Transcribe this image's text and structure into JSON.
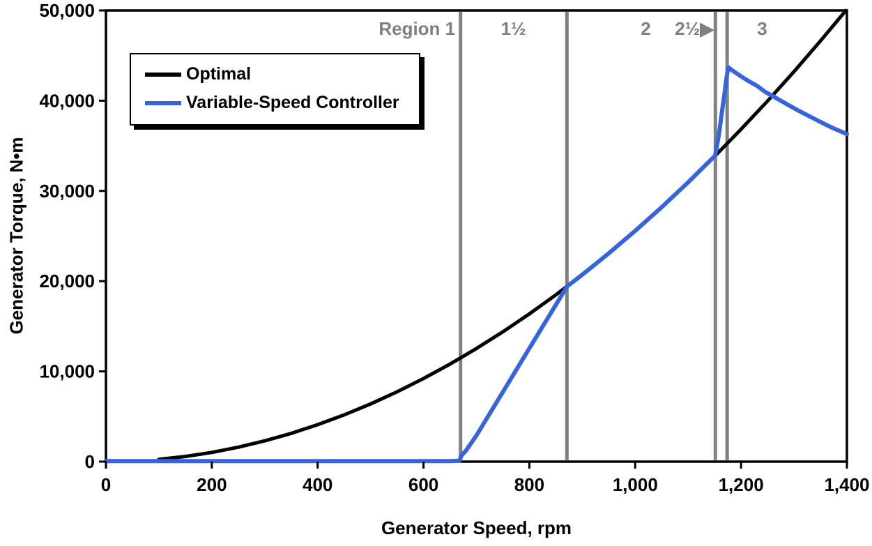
{
  "legend": {
    "items": [
      {
        "label": "Optimal",
        "color": "#000000"
      },
      {
        "label": "Variable-Speed Controller",
        "color": "#3564de"
      }
    ]
  },
  "chart_data": {
    "type": "line",
    "title": "",
    "xlabel": "Generator Speed, rpm",
    "ylabel": "Generator Torque, N•m",
    "xlim": [
      0,
      1400
    ],
    "ylim": [
      0,
      50000
    ],
    "x_ticks": [
      0,
      200,
      400,
      600,
      800,
      1000,
      1200,
      1400
    ],
    "x_tick_labels": [
      "0",
      "200",
      "400",
      "600",
      "800",
      "1,000",
      "1,200",
      "1,400"
    ],
    "y_ticks": [
      0,
      10000,
      20000,
      30000,
      40000,
      50000
    ],
    "y_tick_labels": [
      "0",
      "10,000",
      "20,000",
      "30,000",
      "40,000",
      "50,000"
    ],
    "grid": false,
    "legend_position": "top-left",
    "region_line_color": "#808080",
    "region_boundaries_rpm": [
      670,
      871,
      1151.5,
      1173.7
    ],
    "region_labels": [
      {
        "text": "Region 1",
        "x": 660,
        "align": "end"
      },
      {
        "text": "1½",
        "x": 770,
        "align": "middle"
      },
      {
        "text": "2",
        "x": 1020,
        "align": "middle"
      },
      {
        "text": "2½▶",
        "x": 1149,
        "align": "end"
      },
      {
        "text": "3",
        "x": 1240,
        "align": "middle"
      }
    ],
    "series": [
      {
        "name": "Optimal",
        "color": "#000000",
        "width": 5,
        "points": [
          [
            100,
            256
          ],
          [
            150,
            575
          ],
          [
            200,
            1023
          ],
          [
            250,
            1599
          ],
          [
            300,
            2302
          ],
          [
            350,
            3133
          ],
          [
            400,
            4092
          ],
          [
            450,
            5179
          ],
          [
            500,
            6394
          ],
          [
            550,
            7737
          ],
          [
            600,
            9208
          ],
          [
            650,
            10806
          ],
          [
            700,
            12532
          ],
          [
            750,
            14387
          ],
          [
            800,
            16369
          ],
          [
            850,
            18479
          ],
          [
            900,
            20717
          ],
          [
            950,
            23083
          ],
          [
            1000,
            25576
          ],
          [
            1050,
            28198
          ],
          [
            1100,
            30947
          ],
          [
            1150,
            33824
          ],
          [
            1200,
            36830
          ],
          [
            1250,
            39963
          ],
          [
            1300,
            43224
          ],
          [
            1350,
            46612
          ],
          [
            1398,
            49990
          ]
        ]
      },
      {
        "name": "Variable-Speed Controller",
        "color": "#3564de",
        "width": 6,
        "points": [
          [
            0,
            60
          ],
          [
            80,
            60
          ],
          [
            160,
            60
          ],
          [
            240,
            60
          ],
          [
            320,
            60
          ],
          [
            400,
            60
          ],
          [
            480,
            60
          ],
          [
            560,
            60
          ],
          [
            620,
            60
          ],
          [
            650,
            60
          ],
          [
            668,
            90
          ],
          [
            672,
            700
          ],
          [
            680,
            1200
          ],
          [
            700,
            2900
          ],
          [
            720,
            4830
          ],
          [
            740,
            6760
          ],
          [
            760,
            8690
          ],
          [
            780,
            10620
          ],
          [
            800,
            12550
          ],
          [
            820,
            14480
          ],
          [
            840,
            16410
          ],
          [
            860,
            18340
          ],
          [
            871,
            19400
          ],
          [
            900,
            20720
          ],
          [
            950,
            23080
          ],
          [
            1000,
            25580
          ],
          [
            1050,
            28200
          ],
          [
            1100,
            30950
          ],
          [
            1130,
            32700
          ],
          [
            1151,
            33900
          ],
          [
            1158,
            36200
          ],
          [
            1164,
            38800
          ],
          [
            1169,
            40900
          ],
          [
            1173,
            42700
          ],
          [
            1176,
            43700
          ],
          [
            1180,
            43500
          ],
          [
            1190,
            43100
          ],
          [
            1200,
            42700
          ],
          [
            1215,
            42150
          ],
          [
            1230,
            41650
          ],
          [
            1245,
            41000
          ],
          [
            1260,
            40500
          ],
          [
            1275,
            40000
          ],
          [
            1290,
            39500
          ],
          [
            1305,
            39000
          ],
          [
            1320,
            38550
          ],
          [
            1335,
            38100
          ],
          [
            1350,
            37650
          ],
          [
            1365,
            37200
          ],
          [
            1380,
            36800
          ],
          [
            1400,
            36300
          ]
        ]
      }
    ]
  }
}
